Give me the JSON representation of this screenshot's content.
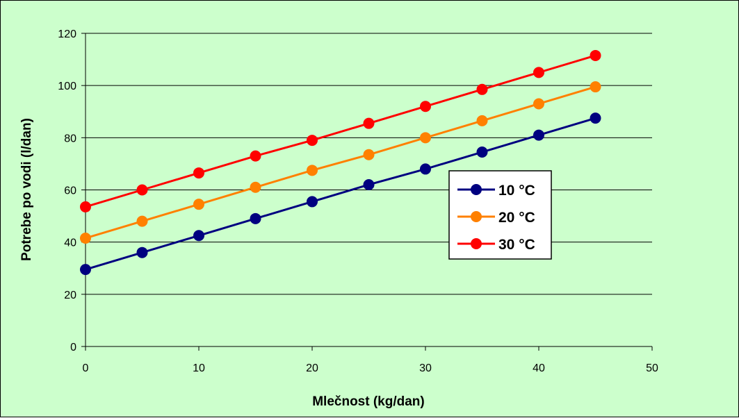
{
  "chart_data": {
    "type": "line",
    "xlabel": "Mlečnost (kg/dan)",
    "ylabel": "Potrebe po vodi (l/dan)",
    "xlim": [
      0,
      50
    ],
    "ylim": [
      0,
      120
    ],
    "x_ticks": [
      0,
      10,
      20,
      30,
      40,
      50
    ],
    "y_ticks": [
      0,
      20,
      40,
      60,
      80,
      100,
      120
    ],
    "grid": "horizontal",
    "legend_position": "right",
    "x": [
      0,
      5,
      10,
      15,
      20,
      25,
      30,
      35,
      40,
      45
    ],
    "series": [
      {
        "name": "10 °C",
        "color": "#000080",
        "values": [
          29.5,
          36,
          42.5,
          49,
          55.5,
          62,
          68,
          74.5,
          81,
          87.5
        ]
      },
      {
        "name": "20 °C",
        "color": "#ff8000",
        "values": [
          41.5,
          48,
          54.5,
          61,
          67.5,
          73.5,
          80,
          86.5,
          93,
          99.5
        ]
      },
      {
        "name": "30 °C",
        "color": "#ff0000",
        "values": [
          53.5,
          60,
          66.5,
          73,
          79,
          85.5,
          92,
          98.5,
          105,
          111.5
        ]
      }
    ],
    "colors": {
      "background": "#ccffcc",
      "gridline": "#000000"
    }
  }
}
